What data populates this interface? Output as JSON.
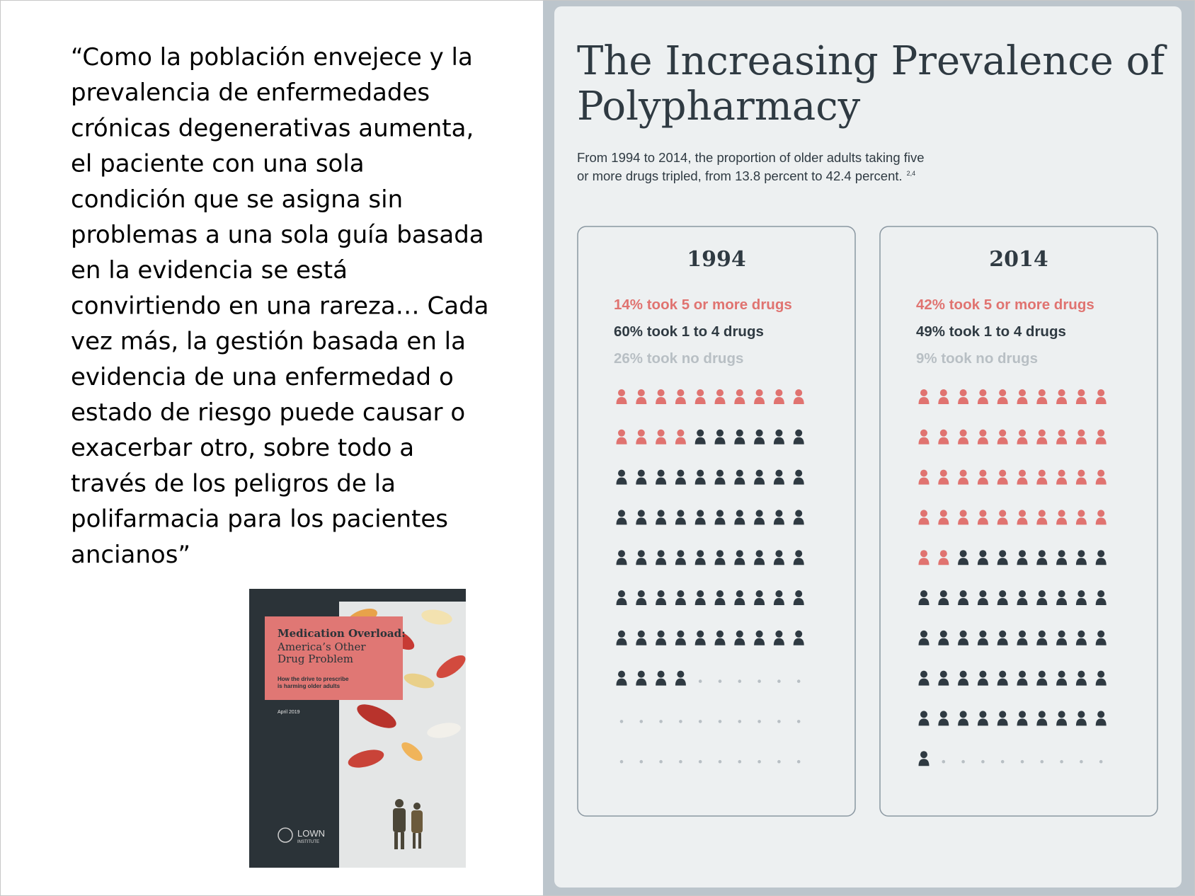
{
  "quote": {
    "lines": [
      "“Como la población envejece y la",
      "prevalencia de enfermedades",
      "crónicas degenerativas aumenta,",
      "el paciente con una sola",
      "condición que se asigna sin",
      "problemas a una sola guía basada",
      "en la evidencia se está",
      "convirtiendo en una rareza… Cada",
      "vez más, la gestión basada en la",
      "evidencia de una enfermedad o",
      "estado de riesgo puede causar o",
      "exacerbar otro, sobre todo a",
      "través de los peligros de la",
      "polifarmacia para los pacientes",
      "ancianos”"
    ]
  },
  "report_cover": {
    "title": "Medication Overload:",
    "subtitle_lines": [
      "America’s Other",
      "Drug Problem"
    ],
    "tagline_lines": [
      "How the drive to prescribe",
      "is harming older adults"
    ],
    "date": "April 2019",
    "publisher": "LOWN",
    "publisher_sub": "INSTITUTE"
  },
  "infographic": {
    "title_lines": [
      "The Increasing Prevalence of",
      "Polypharmacy"
    ],
    "subtitle_lines": [
      "From 1994 to 2014, the proportion of older adults taking five",
      "or more drugs tripled, from 13.8 percent to 42.4 percent."
    ],
    "citation": "2,4",
    "panels": [
      {
        "year": "1994",
        "groups": [
          {
            "label": "14% took 5 or more drugs",
            "value": 14,
            "color": "#e07370",
            "marker": "person"
          },
          {
            "label": "60% took 1 to 4 drugs",
            "value": 60,
            "color": "#2f3a42",
            "marker": "person"
          },
          {
            "label": "26% took no drugs",
            "value": 26,
            "color": "#b8bfc4",
            "marker": "dot"
          }
        ]
      },
      {
        "year": "2014",
        "groups": [
          {
            "label": "42% took 5 or more drugs",
            "value": 42,
            "color": "#e07370",
            "marker": "person"
          },
          {
            "label": "49% took 1 to 4 drugs",
            "value": 49,
            "color": "#2f3a42",
            "marker": "person"
          },
          {
            "label": "9% took no drugs",
            "value": 9,
            "color": "#b8bfc4",
            "marker": "dot"
          }
        ]
      }
    ]
  }
}
